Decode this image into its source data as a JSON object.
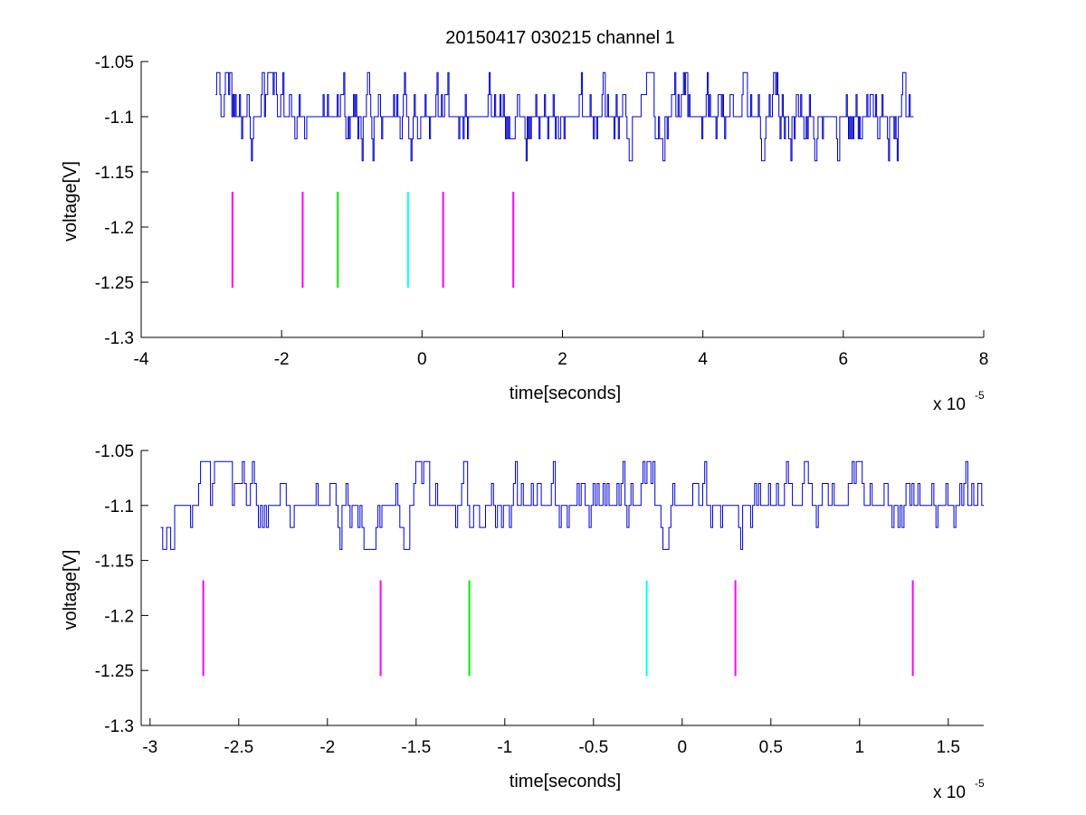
{
  "figure": {
    "title": "20150417 030215 channel 1"
  },
  "chart_data": [
    {
      "type": "line",
      "title": "20150417 030215 channel 1",
      "xlabel": "time[seconds]",
      "ylabel": "voltage[V]",
      "x_multiplier": "x 10",
      "x_exponent": "-5",
      "xlim": [
        -4,
        8
      ],
      "ylim": [
        -1.3,
        -1.05
      ],
      "xticks": [
        -4,
        -2,
        0,
        2,
        4,
        6,
        8
      ],
      "xtick_labels": [
        "-4",
        "-2",
        "0",
        "2",
        "4",
        "6",
        "8"
      ],
      "yticks": [
        -1.3,
        -1.25,
        -1.2,
        -1.15,
        -1.1,
        -1.05
      ],
      "ytick_labels": [
        "-1.3",
        "-1.25",
        "-1.2",
        "-1.15",
        "-1.1",
        "-1.05"
      ],
      "grid": false,
      "series": [
        {
          "kind": "noisy-trace",
          "color": "#0000cc",
          "x_range": [
            -2.94,
            7.0
          ],
          "baseline": -1.1,
          "levels": [
            -1.14,
            -1.12,
            -1.1,
            -1.08,
            -1.06
          ],
          "note_visible_range": "voltage fluctuates between -1.06 and -1.14"
        }
      ],
      "markers": [
        {
          "x": -2.7,
          "y": [
            -1.255,
            -1.168
          ],
          "color": "#ff00ff"
        },
        {
          "x": -1.7,
          "y": [
            -1.255,
            -1.168
          ],
          "color": "#ff00ff"
        },
        {
          "x": -1.2,
          "y": [
            -1.255,
            -1.168
          ],
          "color": "#00ee00"
        },
        {
          "x": -0.2,
          "y": [
            -1.255,
            -1.168
          ],
          "color": "#00ffff"
        },
        {
          "x": 0.3,
          "y": [
            -1.255,
            -1.168
          ],
          "color": "#ff00ff"
        },
        {
          "x": 1.3,
          "y": [
            -1.255,
            -1.168
          ],
          "color": "#ff00ff"
        }
      ]
    },
    {
      "type": "line",
      "title": "",
      "xlabel": "time[seconds]",
      "ylabel": "voltage[V]",
      "x_multiplier": "x 10",
      "x_exponent": "-5",
      "xlim": [
        -3.05,
        1.7
      ],
      "ylim": [
        -1.3,
        -1.05
      ],
      "xticks": [
        -3,
        -2.5,
        -2,
        -1.5,
        -1,
        -0.5,
        0,
        0.5,
        1,
        1.5
      ],
      "xtick_labels": [
        "-3",
        "-2.5",
        "-2",
        "-1.5",
        "-1",
        "-0.5",
        "0",
        "0.5",
        "1",
        "1.5"
      ],
      "yticks": [
        -1.3,
        -1.25,
        -1.2,
        -1.15,
        -1.1,
        -1.05
      ],
      "ytick_labels": [
        "-1.3",
        "-1.25",
        "-1.2",
        "-1.15",
        "-1.1",
        "-1.05"
      ],
      "grid": false,
      "series": [
        {
          "kind": "noisy-trace",
          "color": "#0000cc",
          "x_range": [
            -2.94,
            1.7
          ],
          "baseline": -1.1,
          "levels": [
            -1.14,
            -1.12,
            -1.1,
            -1.08,
            -1.06
          ],
          "note_visible_range": "voltage fluctuates between -1.06 and -1.14"
        }
      ],
      "markers": [
        {
          "x": -2.7,
          "y": [
            -1.255,
            -1.168
          ],
          "color": "#ff00ff"
        },
        {
          "x": -1.7,
          "y": [
            -1.255,
            -1.168
          ],
          "color": "#ff00ff"
        },
        {
          "x": -1.2,
          "y": [
            -1.255,
            -1.168
          ],
          "color": "#00ee00"
        },
        {
          "x": -0.2,
          "y": [
            -1.255,
            -1.168
          ],
          "color": "#00ffff"
        },
        {
          "x": 0.3,
          "y": [
            -1.255,
            -1.168
          ],
          "color": "#ff00ff"
        },
        {
          "x": 1.3,
          "y": [
            -1.255,
            -1.168
          ],
          "color": "#ff00ff"
        }
      ]
    }
  ]
}
